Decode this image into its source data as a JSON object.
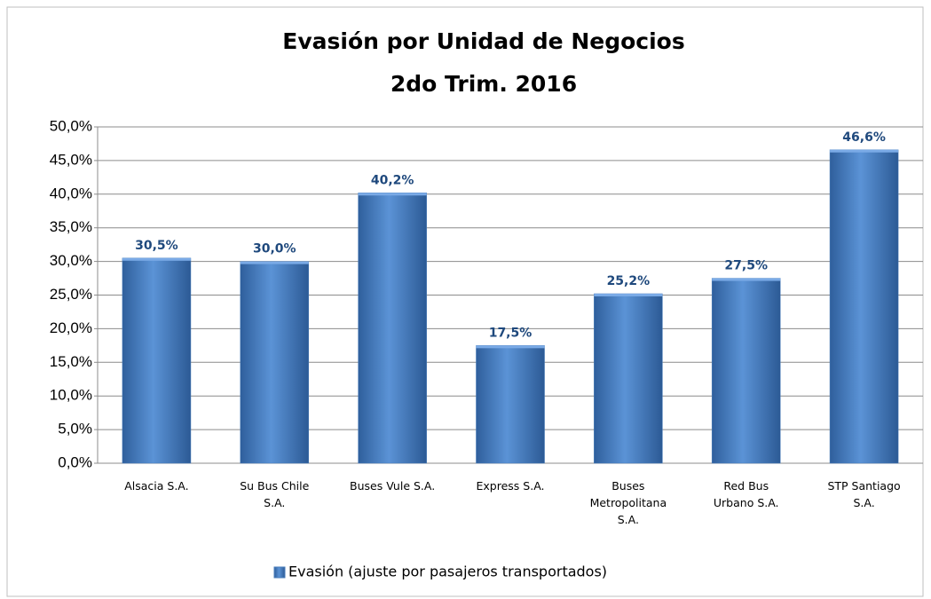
{
  "chart_data": {
    "type": "bar",
    "title": [
      "Evasión por Unidad de Negocios",
      "2do Trim. 2016"
    ],
    "categories": [
      [
        "Alsacia S.A."
      ],
      [
        "Su Bus Chile",
        "S.A."
      ],
      [
        "Buses Vule S.A."
      ],
      [
        "Express S.A."
      ],
      [
        "Buses",
        "Metropolitana",
        "S.A."
      ],
      [
        "Red Bus",
        "Urbano S.A."
      ],
      [
        "STP Santiago",
        "S.A."
      ]
    ],
    "series": [
      {
        "name": "Evasión (ajuste por pasajeros transportados)",
        "color": "#4a7ebb",
        "values": [
          30.5,
          30.0,
          40.2,
          17.5,
          25.2,
          27.5,
          46.6
        ],
        "value_labels": [
          "30,5%",
          "30,0%",
          "40,2%",
          "17,5%",
          "25,2%",
          "27,5%",
          "46,6%"
        ]
      }
    ],
    "ylim": [
      0,
      50
    ],
    "yticks": [
      {
        "value": 0,
        "label": "0,0%"
      },
      {
        "value": 5,
        "label": "5,0%"
      },
      {
        "value": 10,
        "label": "10,0%"
      },
      {
        "value": 15,
        "label": "15,0%"
      },
      {
        "value": 20,
        "label": "20,0%"
      },
      {
        "value": 25,
        "label": "25,0%"
      },
      {
        "value": 30,
        "label": "30,0%"
      },
      {
        "value": 35,
        "label": "35,0%"
      },
      {
        "value": 40,
        "label": "40,0%"
      },
      {
        "value": 45,
        "label": "45,0%"
      },
      {
        "value": 50,
        "label": "50,0%"
      }
    ],
    "grid": true,
    "legend": "bottom"
  }
}
